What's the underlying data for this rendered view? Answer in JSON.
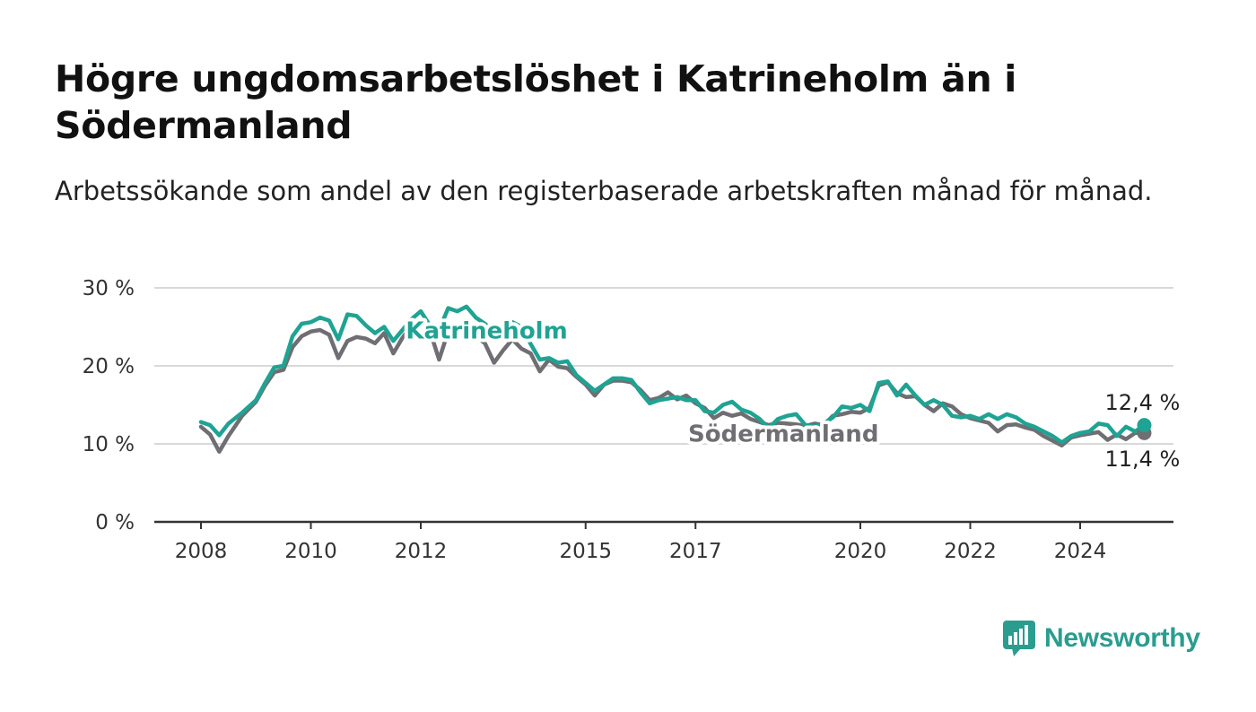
{
  "title": "Högre ungdomsarbetslöshet i Katrineholm än i Södermanland",
  "subtitle": "Arbetssökande som andel av den registerbaserade arbetskraften månad för månad.",
  "brand": {
    "name": "Newsworthy",
    "color": "#2a9d8f",
    "icon": "bar-chart-speech-bubble-icon"
  },
  "chart_data": {
    "type": "line",
    "title": "Högre ungdomsarbetslöshet i Katrineholm än i Södermanland",
    "subtitle": "Arbetssökande som andel av den registerbaserade arbetskraften månad för månad.",
    "xlabel": "",
    "ylabel": "",
    "x_ticks": [
      "2008",
      "2010",
      "2012",
      "2015",
      "2017",
      "2020",
      "2022",
      "2024"
    ],
    "y_ticks": [
      "0 %",
      "10 %",
      "20 %",
      "30 %"
    ],
    "ylim": [
      0,
      30
    ],
    "xlim": [
      "2007-09",
      "2025-12"
    ],
    "grid": true,
    "legend": "inline labels on lines",
    "series": [
      {
        "name": "Södermanland",
        "color": "#6e6e73",
        "end_label": "11,4 %",
        "points": [
          [
            "2008-01",
            12.2
          ],
          [
            "2008-03",
            11.2
          ],
          [
            "2008-05",
            9.0
          ],
          [
            "2008-07",
            11.0
          ],
          [
            "2008-10",
            13.6
          ],
          [
            "2009-01",
            15.4
          ],
          [
            "2009-03",
            17.5
          ],
          [
            "2009-05",
            19.2
          ],
          [
            "2009-07",
            19.5
          ],
          [
            "2009-09",
            22.4
          ],
          [
            "2009-11",
            23.8
          ],
          [
            "2010-01",
            24.4
          ],
          [
            "2010-03",
            24.6
          ],
          [
            "2010-05",
            24.0
          ],
          [
            "2010-07",
            21.0
          ],
          [
            "2010-09",
            23.2
          ],
          [
            "2010-11",
            23.7
          ],
          [
            "2011-01",
            23.5
          ],
          [
            "2011-03",
            22.9
          ],
          [
            "2011-05",
            24.2
          ],
          [
            "2011-07",
            21.6
          ],
          [
            "2011-09",
            23.6
          ],
          [
            "2011-11",
            25.2
          ],
          [
            "2012-01",
            25.6
          ],
          [
            "2012-03",
            24.5
          ],
          [
            "2012-05",
            20.8
          ],
          [
            "2012-07",
            24.4
          ],
          [
            "2012-09",
            25.0
          ],
          [
            "2012-11",
            25.2
          ],
          [
            "2013-01",
            23.8
          ],
          [
            "2013-03",
            22.9
          ],
          [
            "2013-05",
            20.4
          ],
          [
            "2013-07",
            22.0
          ],
          [
            "2013-09",
            23.4
          ],
          [
            "2013-11",
            22.2
          ],
          [
            "2014-01",
            21.6
          ],
          [
            "2014-03",
            19.3
          ],
          [
            "2014-05",
            20.8
          ],
          [
            "2014-07",
            19.9
          ],
          [
            "2014-09",
            19.7
          ],
          [
            "2014-11",
            18.6
          ],
          [
            "2015-01",
            17.6
          ],
          [
            "2015-03",
            16.2
          ],
          [
            "2015-05",
            17.6
          ],
          [
            "2015-07",
            18.1
          ],
          [
            "2015-09",
            18.1
          ],
          [
            "2015-11",
            17.9
          ],
          [
            "2016-01",
            16.9
          ],
          [
            "2016-03",
            15.6
          ],
          [
            "2016-05",
            15.9
          ],
          [
            "2016-07",
            16.6
          ],
          [
            "2016-09",
            15.7
          ],
          [
            "2016-11",
            16.2
          ],
          [
            "2017-01",
            15.2
          ],
          [
            "2017-03",
            14.6
          ],
          [
            "2017-05",
            13.3
          ],
          [
            "2017-07",
            14.0
          ],
          [
            "2017-09",
            13.6
          ],
          [
            "2017-11",
            13.9
          ],
          [
            "2018-01",
            13.2
          ],
          [
            "2018-03",
            12.8
          ],
          [
            "2018-05",
            12.4
          ],
          [
            "2018-07",
            12.7
          ],
          [
            "2018-09",
            12.6
          ],
          [
            "2018-11",
            12.5
          ],
          [
            "2019-01",
            12.3
          ],
          [
            "2019-03",
            12.6
          ],
          [
            "2019-05",
            12.4
          ],
          [
            "2019-07",
            13.6
          ],
          [
            "2019-09",
            13.8
          ],
          [
            "2019-11",
            14.1
          ],
          [
            "2020-01",
            14.0
          ],
          [
            "2020-03",
            14.6
          ],
          [
            "2020-05",
            17.5
          ],
          [
            "2020-07",
            17.9
          ],
          [
            "2020-09",
            16.5
          ],
          [
            "2020-11",
            16.0
          ],
          [
            "2021-01",
            16.1
          ],
          [
            "2021-03",
            15.0
          ],
          [
            "2021-05",
            14.2
          ],
          [
            "2021-07",
            15.2
          ],
          [
            "2021-09",
            14.8
          ],
          [
            "2021-11",
            13.8
          ],
          [
            "2022-01",
            13.3
          ],
          [
            "2022-03",
            13.0
          ],
          [
            "2022-05",
            12.7
          ],
          [
            "2022-07",
            11.6
          ],
          [
            "2022-09",
            12.4
          ],
          [
            "2022-11",
            12.5
          ],
          [
            "2023-01",
            12.1
          ],
          [
            "2023-03",
            11.8
          ],
          [
            "2023-05",
            11.0
          ],
          [
            "2023-07",
            10.4
          ],
          [
            "2023-09",
            9.8
          ],
          [
            "2023-11",
            10.8
          ],
          [
            "2024-01",
            11.1
          ],
          [
            "2024-03",
            11.3
          ],
          [
            "2024-05",
            11.5
          ],
          [
            "2024-07",
            10.5
          ],
          [
            "2024-09",
            11.2
          ],
          [
            "2024-11",
            10.6
          ],
          [
            "2025-01",
            11.4
          ],
          [
            "2025-03",
            11.4
          ]
        ]
      },
      {
        "name": "Katrineholm",
        "color": "#1fa393",
        "end_label": "12,4 %",
        "points": [
          [
            "2008-01",
            12.8
          ],
          [
            "2008-03",
            12.4
          ],
          [
            "2008-05",
            11.1
          ],
          [
            "2008-07",
            12.6
          ],
          [
            "2008-10",
            14.0
          ],
          [
            "2009-01",
            15.6
          ],
          [
            "2009-03",
            17.8
          ],
          [
            "2009-05",
            19.8
          ],
          [
            "2009-07",
            20.0
          ],
          [
            "2009-09",
            23.8
          ],
          [
            "2009-11",
            25.4
          ],
          [
            "2010-01",
            25.6
          ],
          [
            "2010-03",
            26.2
          ],
          [
            "2010-05",
            25.8
          ],
          [
            "2010-07",
            23.4
          ],
          [
            "2010-09",
            26.6
          ],
          [
            "2010-11",
            26.4
          ],
          [
            "2011-01",
            25.2
          ],
          [
            "2011-03",
            24.2
          ],
          [
            "2011-05",
            25.0
          ],
          [
            "2011-07",
            23.2
          ],
          [
            "2011-09",
            24.6
          ],
          [
            "2011-11",
            26.0
          ],
          [
            "2012-01",
            27.0
          ],
          [
            "2012-03",
            25.2
          ],
          [
            "2012-05",
            24.6
          ],
          [
            "2012-07",
            27.4
          ],
          [
            "2012-09",
            27.0
          ],
          [
            "2012-11",
            27.6
          ],
          [
            "2013-01",
            26.2
          ],
          [
            "2013-03",
            25.4
          ],
          [
            "2013-05",
            24.2
          ],
          [
            "2013-07",
            24.8
          ],
          [
            "2013-09",
            25.6
          ],
          [
            "2013-11",
            25.0
          ],
          [
            "2014-01",
            22.8
          ],
          [
            "2014-03",
            20.8
          ],
          [
            "2014-05",
            21.0
          ],
          [
            "2014-07",
            20.4
          ],
          [
            "2014-09",
            20.6
          ],
          [
            "2014-11",
            18.8
          ],
          [
            "2015-01",
            17.8
          ],
          [
            "2015-03",
            16.8
          ],
          [
            "2015-05",
            17.6
          ],
          [
            "2015-07",
            18.4
          ],
          [
            "2015-09",
            18.4
          ],
          [
            "2015-11",
            18.2
          ],
          [
            "2016-01",
            16.6
          ],
          [
            "2016-03",
            15.2
          ],
          [
            "2016-05",
            15.6
          ],
          [
            "2016-07",
            15.8
          ],
          [
            "2016-09",
            16.0
          ],
          [
            "2016-11",
            15.6
          ],
          [
            "2017-01",
            15.6
          ],
          [
            "2017-03",
            14.2
          ],
          [
            "2017-05",
            14.0
          ],
          [
            "2017-07",
            15.0
          ],
          [
            "2017-09",
            15.4
          ],
          [
            "2017-11",
            14.4
          ],
          [
            "2018-01",
            14.0
          ],
          [
            "2018-03",
            13.2
          ],
          [
            "2018-05",
            12.0
          ],
          [
            "2018-07",
            13.2
          ],
          [
            "2018-09",
            13.6
          ],
          [
            "2018-11",
            13.8
          ],
          [
            "2019-01",
            12.4
          ],
          [
            "2019-03",
            12.2
          ],
          [
            "2019-05",
            12.6
          ],
          [
            "2019-07",
            13.4
          ],
          [
            "2019-09",
            14.8
          ],
          [
            "2019-11",
            14.6
          ],
          [
            "2020-01",
            15.0
          ],
          [
            "2020-03",
            14.2
          ],
          [
            "2020-05",
            17.8
          ],
          [
            "2020-07",
            18.0
          ],
          [
            "2020-09",
            16.2
          ],
          [
            "2020-11",
            17.6
          ],
          [
            "2021-01",
            16.2
          ],
          [
            "2021-03",
            15.0
          ],
          [
            "2021-05",
            15.6
          ],
          [
            "2021-07",
            15.0
          ],
          [
            "2021-09",
            13.6
          ],
          [
            "2021-11",
            13.4
          ],
          [
            "2022-01",
            13.6
          ],
          [
            "2022-03",
            13.2
          ],
          [
            "2022-05",
            13.8
          ],
          [
            "2022-07",
            13.2
          ],
          [
            "2022-09",
            13.8
          ],
          [
            "2022-11",
            13.4
          ],
          [
            "2023-01",
            12.6
          ],
          [
            "2023-03",
            12.2
          ],
          [
            "2023-05",
            11.6
          ],
          [
            "2023-07",
            11.0
          ],
          [
            "2023-09",
            10.2
          ],
          [
            "2023-11",
            11.0
          ],
          [
            "2024-01",
            11.4
          ],
          [
            "2024-03",
            11.6
          ],
          [
            "2024-05",
            12.6
          ],
          [
            "2024-07",
            12.4
          ],
          [
            "2024-09",
            11.0
          ],
          [
            "2024-11",
            12.2
          ],
          [
            "2025-01",
            11.6
          ],
          [
            "2025-03",
            12.4
          ]
        ]
      }
    ]
  }
}
